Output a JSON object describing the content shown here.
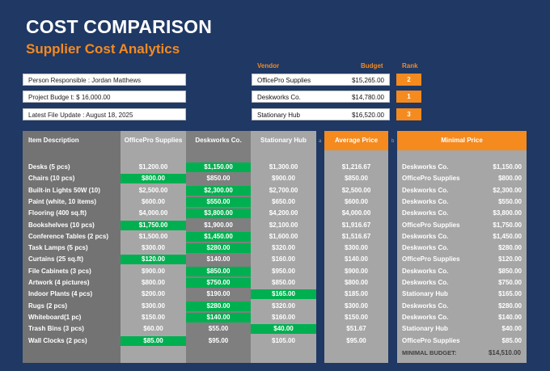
{
  "header": {
    "title": "COST COMPARISON",
    "subtitle": "Supplier Cost Analytics"
  },
  "info": {
    "responsible": "Person Responsible : Jordan Matthews",
    "budget": "Project Budge  t: $ 16,000.00",
    "update": "Latest File Update : August 18, 2025"
  },
  "vendors_header": {
    "vendor": "Vendor",
    "budget": "Budget",
    "rank": "Rank"
  },
  "vendors": [
    {
      "name": "OfficePro Supplies",
      "budget": "$15,265.00",
      "rank": "2"
    },
    {
      "name": "Deskworks Co.",
      "budget": "$14,780.00",
      "rank": "1"
    },
    {
      "name": "Stationary Hub",
      "budget": "$16,520.00",
      "rank": "3"
    }
  ],
  "table": {
    "headers": {
      "item": "Item Description",
      "officepro": "OfficePro Supplies",
      "deskworks": "Deskworks Co.",
      "hub": "Stationary Hub",
      "average": "Average Price",
      "minimal": "Minimal Price"
    },
    "side_labels": {
      "a": "a",
      "b": "b"
    },
    "rows": [
      {
        "item": "Desks (5 pcs)",
        "officepro": "$1,200.00",
        "deskworks": "$1,150.00",
        "hub": "$1,300.00",
        "average": "$1,216.67",
        "min_vendor": "Deskworks Co.",
        "min_price": "$1,150.00",
        "best": "deskworks"
      },
      {
        "item": "Chairs (10 pcs)",
        "officepro": "$800.00",
        "deskworks": "$850.00",
        "hub": "$900.00",
        "average": "$850.00",
        "min_vendor": "OfficePro Supplies",
        "min_price": "$800.00",
        "best": "officepro"
      },
      {
        "item": "Built-in Lights 50W (10)",
        "officepro": "$2,500.00",
        "deskworks": "$2,300.00",
        "hub": "$2,700.00",
        "average": "$2,500.00",
        "min_vendor": "Deskworks Co.",
        "min_price": "$2,300.00",
        "best": "deskworks"
      },
      {
        "item": "Paint (white, 10 items)",
        "officepro": "$600.00",
        "deskworks": "$550.00",
        "hub": "$650.00",
        "average": "$600.00",
        "min_vendor": "Deskworks Co.",
        "min_price": "$550.00",
        "best": "deskworks"
      },
      {
        "item": "Flooring (400 sq.ft)",
        "officepro": "$4,000.00",
        "deskworks": "$3,800.00",
        "hub": "$4,200.00",
        "average": "$4,000.00",
        "min_vendor": "Deskworks Co.",
        "min_price": "$3,800.00",
        "best": "deskworks"
      },
      {
        "item": "Bookshelves (10 pcs)",
        "officepro": "$1,750.00",
        "deskworks": "$1,900.00",
        "hub": "$2,100.00",
        "average": "$1,916.67",
        "min_vendor": "OfficePro Supplies",
        "min_price": "$1,750.00",
        "best": "officepro"
      },
      {
        "item": "Conference Tables (2 pcs)",
        "officepro": "$1,500.00",
        "deskworks": "$1,450.00",
        "hub": "$1,600.00",
        "average": "$1,516.67",
        "min_vendor": "Deskworks Co.",
        "min_price": "$1,450.00",
        "best": "deskworks"
      },
      {
        "item": "Task Lamps (5 pcs)",
        "officepro": "$300.00",
        "deskworks": "$280.00",
        "hub": "$320.00",
        "average": "$300.00",
        "min_vendor": "Deskworks Co.",
        "min_price": "$280.00",
        "best": "deskworks"
      },
      {
        "item": "Curtains (25 sq.ft)",
        "officepro": "$120.00",
        "deskworks": "$140.00",
        "hub": "$160.00",
        "average": "$140.00",
        "min_vendor": "OfficePro Supplies",
        "min_price": "$120.00",
        "best": "officepro"
      },
      {
        "item": "File Cabinets (3 pcs)",
        "officepro": "$900.00",
        "deskworks": "$850.00",
        "hub": "$950.00",
        "average": "$900.00",
        "min_vendor": "Deskworks Co.",
        "min_price": "$850.00",
        "best": "deskworks"
      },
      {
        "item": "Artwork (4 pictures)",
        "officepro": "$800.00",
        "deskworks": "$750.00",
        "hub": "$850.00",
        "average": "$800.00",
        "min_vendor": "Deskworks Co.",
        "min_price": "$750.00",
        "best": "deskworks"
      },
      {
        "item": "Indoor Plants (4 pcs)",
        "officepro": "$200.00",
        "deskworks": "$190.00",
        "hub": "$165.00",
        "average": "$185.00",
        "min_vendor": "Stationary Hub",
        "min_price": "$165.00",
        "best": "hub"
      },
      {
        "item": "Rugs (2 pcs)",
        "officepro": "$300.00",
        "deskworks": "$280.00",
        "hub": "$320.00",
        "average": "$300.00",
        "min_vendor": "Deskworks Co.",
        "min_price": "$280.00",
        "best": "deskworks"
      },
      {
        "item": "Whiteboard(1 pc)",
        "officepro": "$150.00",
        "deskworks": "$140.00",
        "hub": "$160.00",
        "average": "$150.00",
        "min_vendor": "Deskworks Co.",
        "min_price": "$140.00",
        "best": "deskworks"
      },
      {
        "item": "Trash Bins (3 pcs)",
        "officepro": "$60.00",
        "deskworks": "$55.00",
        "hub": "$40.00",
        "average": "$51.67",
        "min_vendor": "Stationary Hub",
        "min_price": "$40.00",
        "best": "hub"
      },
      {
        "item": "Wall Clocks (2 pcs)",
        "officepro": "$85.00",
        "deskworks": "$95.00",
        "hub": "$105.00",
        "average": "$95.00",
        "min_vendor": "OfficePro Supplies",
        "min_price": "$85.00",
        "best": "officepro"
      }
    ],
    "minimal_budget_label": "MINIMAL BUDGET:",
    "minimal_budget_value": "$14,510.00"
  },
  "colors": {
    "background": "#1f3864",
    "accent": "#f58a1f",
    "best_price": "#00b050",
    "col_item": "#737373",
    "col_officepro": "#a6a6a6",
    "col_deskworks": "#7f7f7f",
    "col_hub": "#a6a6a6",
    "col_average": "#a6a6a6",
    "col_minimal": "#a6a6a6"
  }
}
